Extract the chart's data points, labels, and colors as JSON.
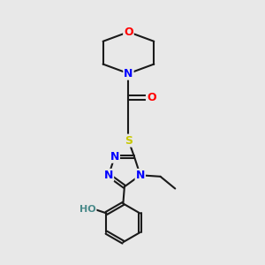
{
  "background_color": "#e8e8e8",
  "bond_color": "#1a1a1a",
  "atom_colors": {
    "N": "#0000ff",
    "O": "#ff0000",
    "S": "#c8c800",
    "HO": "#4a8a8a",
    "C": "#1a1a1a"
  },
  "font_size_atoms": 9,
  "font_size_small": 8,
  "title": ""
}
